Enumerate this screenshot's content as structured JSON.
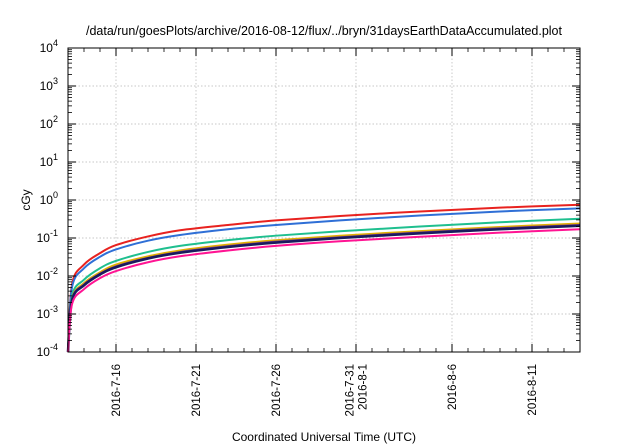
{
  "chart_data": {
    "type": "line",
    "title": "/data/run/goesPlots/archive/2016-08-12/flux/../bryn/31daysEarthDataAccumulated.plot",
    "xlabel": "Coordinated Universal Time (UTC)",
    "ylabel": "cGy",
    "yscale": "log",
    "ylim": [
      0.0001,
      10000
    ],
    "xlim": [
      "2016-07-13",
      "2016-08-14"
    ],
    "grid": true,
    "y_ticks": [
      {
        "value": 0.0001,
        "base": "10",
        "exp": "-4"
      },
      {
        "value": 0.001,
        "base": "10",
        "exp": "-3"
      },
      {
        "value": 0.01,
        "base": "10",
        "exp": "-2"
      },
      {
        "value": 0.1,
        "base": "10",
        "exp": "-1"
      },
      {
        "value": 1,
        "base": "10",
        "exp": "0"
      },
      {
        "value": 10,
        "base": "10",
        "exp": "1"
      },
      {
        "value": 100,
        "base": "10",
        "exp": "2"
      },
      {
        "value": 1000,
        "base": "10",
        "exp": "3"
      },
      {
        "value": 10000,
        "base": "10",
        "exp": "4"
      }
    ],
    "x_ticks": [
      {
        "date": "2016-07-16",
        "lines": [
          "2016-7-16"
        ]
      },
      {
        "date": "2016-07-21",
        "lines": [
          "2016-7-21"
        ]
      },
      {
        "date": "2016-07-26",
        "lines": [
          "2016-7-26"
        ]
      },
      {
        "date": "2016-07-31",
        "lines": [
          "2016-7-31",
          "2016-8-1"
        ]
      },
      {
        "date": "2016-08-06",
        "lines": [
          "2016-8-6"
        ]
      },
      {
        "date": "2016-08-11",
        "lines": [
          "2016-8-11"
        ]
      }
    ],
    "series": [
      {
        "color": "#e8221f",
        "width": 2,
        "points": [
          [
            "2016-07-13",
            0.0001
          ],
          [
            "2016-07-13 06:00",
            0.006
          ],
          [
            "2016-07-14",
            0.02
          ],
          [
            "2016-07-15",
            0.04
          ],
          [
            "2016-07-16",
            0.065
          ],
          [
            "2016-07-18",
            0.11
          ],
          [
            "2016-07-20",
            0.16
          ],
          [
            "2016-07-23",
            0.22
          ],
          [
            "2016-07-26",
            0.29
          ],
          [
            "2016-07-30",
            0.38
          ],
          [
            "2016-08-04",
            0.5
          ],
          [
            "2016-08-09",
            0.63
          ],
          [
            "2016-08-14",
            0.75
          ]
        ]
      },
      {
        "color": "#2f6fd6",
        "width": 2,
        "points": [
          [
            "2016-07-13",
            0.0001
          ],
          [
            "2016-07-13 06:00",
            0.005
          ],
          [
            "2016-07-14",
            0.016
          ],
          [
            "2016-07-15",
            0.032
          ],
          [
            "2016-07-16",
            0.05
          ],
          [
            "2016-07-18",
            0.085
          ],
          [
            "2016-07-20",
            0.12
          ],
          [
            "2016-07-23",
            0.17
          ],
          [
            "2016-07-26",
            0.22
          ],
          [
            "2016-07-30",
            0.29
          ],
          [
            "2016-08-04",
            0.39
          ],
          [
            "2016-08-09",
            0.5
          ],
          [
            "2016-08-14",
            0.6
          ]
        ]
      },
      {
        "color": "#1fbf8f",
        "width": 2,
        "points": [
          [
            "2016-07-13",
            0.0001
          ],
          [
            "2016-07-13 06:00",
            0.003
          ],
          [
            "2016-07-14",
            0.008
          ],
          [
            "2016-07-15",
            0.016
          ],
          [
            "2016-07-16",
            0.025
          ],
          [
            "2016-07-18",
            0.043
          ],
          [
            "2016-07-20",
            0.062
          ],
          [
            "2016-07-23",
            0.088
          ],
          [
            "2016-07-26",
            0.115
          ],
          [
            "2016-07-30",
            0.15
          ],
          [
            "2016-08-04",
            0.2
          ],
          [
            "2016-08-09",
            0.26
          ],
          [
            "2016-08-14",
            0.32
          ]
        ]
      },
      {
        "color": "#e0b000",
        "width": 2,
        "points": [
          [
            "2016-07-13",
            0.0001
          ],
          [
            "2016-07-13 06:00",
            0.0025
          ],
          [
            "2016-07-14",
            0.0065
          ],
          [
            "2016-07-15",
            0.0125
          ],
          [
            "2016-07-16",
            0.02
          ],
          [
            "2016-07-18",
            0.033
          ],
          [
            "2016-07-20",
            0.047
          ],
          [
            "2016-07-23",
            0.067
          ],
          [
            "2016-07-26",
            0.087
          ],
          [
            "2016-07-30",
            0.115
          ],
          [
            "2016-08-04",
            0.152
          ],
          [
            "2016-08-09",
            0.195
          ],
          [
            "2016-08-14",
            0.24
          ]
        ]
      },
      {
        "color": "#7a3a8c",
        "width": 2,
        "points": [
          [
            "2016-07-13",
            0.0001
          ],
          [
            "2016-07-13 06:00",
            0.0024
          ],
          [
            "2016-07-14",
            0.006
          ],
          [
            "2016-07-15",
            0.0115
          ],
          [
            "2016-07-16",
            0.018
          ],
          [
            "2016-07-18",
            0.03
          ],
          [
            "2016-07-20",
            0.043
          ],
          [
            "2016-07-23",
            0.061
          ],
          [
            "2016-07-26",
            0.08
          ],
          [
            "2016-07-30",
            0.105
          ],
          [
            "2016-08-04",
            0.14
          ],
          [
            "2016-08-09",
            0.18
          ],
          [
            "2016-08-14",
            0.22
          ]
        ]
      },
      {
        "color": "#1a1a5e",
        "width": 2.6,
        "points": [
          [
            "2016-07-13",
            0.0001
          ],
          [
            "2016-07-13 06:00",
            0.0023
          ],
          [
            "2016-07-14",
            0.0057
          ],
          [
            "2016-07-15",
            0.011
          ],
          [
            "2016-07-16",
            0.017
          ],
          [
            "2016-07-18",
            0.029
          ],
          [
            "2016-07-20",
            0.041
          ],
          [
            "2016-07-23",
            0.058
          ],
          [
            "2016-07-26",
            0.076
          ],
          [
            "2016-07-30",
            0.1
          ],
          [
            "2016-08-04",
            0.133
          ],
          [
            "2016-08-09",
            0.17
          ],
          [
            "2016-08-14",
            0.21
          ]
        ]
      },
      {
        "color": "#ff1493",
        "width": 2,
        "points": [
          [
            "2016-07-13",
            0.0001
          ],
          [
            "2016-07-13 06:00",
            0.0018
          ],
          [
            "2016-07-14",
            0.0045
          ],
          [
            "2016-07-15",
            0.0088
          ],
          [
            "2016-07-16",
            0.0135
          ],
          [
            "2016-07-18",
            0.023
          ],
          [
            "2016-07-20",
            0.033
          ],
          [
            "2016-07-23",
            0.047
          ],
          [
            "2016-07-26",
            0.062
          ],
          [
            "2016-07-30",
            0.082
          ],
          [
            "2016-08-04",
            0.108
          ],
          [
            "2016-08-09",
            0.138
          ],
          [
            "2016-08-14",
            0.17
          ]
        ]
      }
    ]
  }
}
